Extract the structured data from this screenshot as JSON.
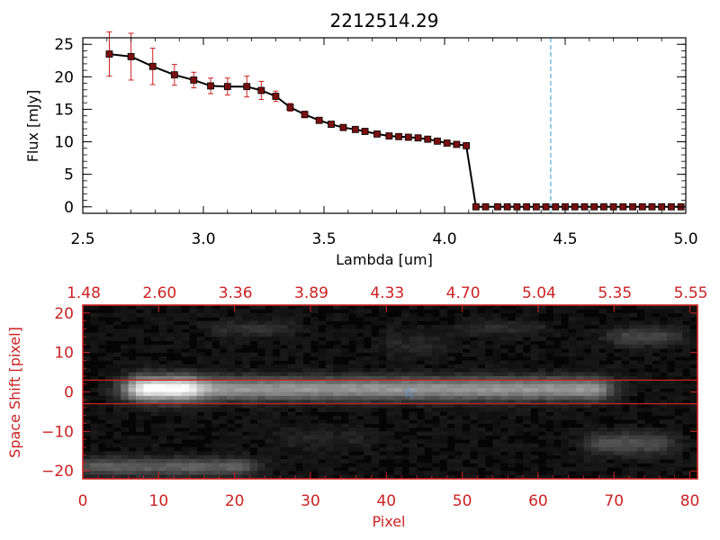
{
  "colors": {
    "axis_top": "#000000",
    "axis_bottom": "#cc2222",
    "errorbar": "#cc2222",
    "marker": "#7a0f0f",
    "vline": "#3399cc",
    "ridge_line": "#cc2222",
    "star": "#4aa3ff",
    "image_bg": "#050505"
  },
  "chart_data": [
    {
      "type": "line",
      "title": "2212514.29",
      "xlabel": "Lambda [um]",
      "ylabel": "Flux [mJy]",
      "xlim": [
        2.5,
        5.0
      ],
      "ylim": [
        -1,
        26
      ],
      "x_ticks": [
        2.5,
        3.0,
        3.5,
        4.0,
        4.5,
        5.0
      ],
      "x_tick_labels": [
        "2.5",
        "3.0",
        "3.5",
        "4.0",
        "4.5",
        "5.0"
      ],
      "y_ticks": [
        0,
        5,
        10,
        15,
        20,
        25
      ],
      "y_tick_labels": [
        "0",
        "5",
        "10",
        "15",
        "20",
        "25"
      ],
      "vline_x": 4.44,
      "series": [
        {
          "x": [
            2.61,
            2.7,
            2.79,
            2.88,
            2.96,
            3.03,
            3.1,
            3.18,
            3.24,
            3.3,
            3.36,
            3.42,
            3.48,
            3.53,
            3.58,
            3.63,
            3.67,
            3.72,
            3.77,
            3.81,
            3.85,
            3.89,
            3.93,
            3.97,
            4.01,
            4.05,
            4.09,
            4.13,
            4.17,
            4.22,
            4.26,
            4.3,
            4.34,
            4.38,
            4.42,
            4.46,
            4.5,
            4.54,
            4.58,
            4.62,
            4.66,
            4.7,
            4.74,
            4.78,
            4.82,
            4.86,
            4.9,
            4.94,
            4.98
          ],
          "y": [
            23.5,
            23.1,
            21.6,
            20.3,
            19.5,
            18.6,
            18.5,
            18.5,
            17.9,
            17.0,
            15.3,
            14.2,
            13.3,
            12.7,
            12.2,
            11.9,
            11.6,
            11.2,
            10.9,
            10.8,
            10.7,
            10.6,
            10.4,
            10.1,
            9.8,
            9.6,
            9.4,
            0.0,
            0.0,
            0.0,
            0.0,
            0.0,
            0.0,
            0.0,
            0.0,
            0.0,
            0.0,
            0.0,
            0.0,
            0.0,
            0.0,
            0.0,
            0.0,
            0.0,
            0.0,
            0.0,
            0.0,
            0.0,
            0.0
          ],
          "err": [
            3.4,
            3.6,
            2.8,
            1.6,
            1.2,
            1.2,
            1.3,
            1.6,
            1.4,
            0.8,
            0.6,
            0.5,
            0.4,
            0.3,
            0.3,
            0.3,
            0.3,
            0.3,
            0.3,
            0.3,
            0.3,
            0.3,
            0.3,
            0.3,
            0.3,
            0.3,
            0.3,
            0.3,
            0.3,
            0.3,
            0.3,
            0.3,
            0.3,
            0.3,
            0.3,
            0.3,
            0.3,
            0.3,
            0.3,
            0.3,
            0.3,
            0.3,
            0.3,
            0.3,
            0.3,
            0.3,
            0.3,
            0.3,
            0.3
          ]
        }
      ]
    },
    {
      "type": "heatmap",
      "xlabel": "Pixel",
      "ylabel": "Space Shift [pixel]",
      "xlim": [
        0,
        81
      ],
      "ylim": [
        -22,
        22
      ],
      "x_ticks": [
        0,
        10,
        20,
        30,
        40,
        50,
        60,
        70,
        80
      ],
      "x_tick_labels": [
        "0",
        "10",
        "20",
        "30",
        "40",
        "50",
        "60",
        "70",
        "80"
      ],
      "y_ticks": [
        -20,
        -10,
        0,
        10,
        20
      ],
      "y_tick_labels": [
        "−20",
        "−10",
        "0",
        "10",
        "20"
      ],
      "top_ticks": [
        0,
        10,
        20,
        30,
        40,
        50,
        60,
        70,
        80
      ],
      "top_tick_labels": [
        "1.48",
        "2.60",
        "3.36",
        "3.89",
        "4.33",
        "4.70",
        "5.04",
        "5.35",
        "5.55"
      ],
      "hlines": [
        3,
        -3
      ],
      "star": {
        "x": 43,
        "y": 0
      },
      "sources": [
        {
          "x0": 8,
          "x1": 67,
          "y": 0.8,
          "amp": 0.55,
          "sy": 2.0
        },
        {
          "x0": 9,
          "x1": 13,
          "y": 0.8,
          "amp": 0.45,
          "sy": 2.3
        },
        {
          "x0": 2,
          "x1": 20,
          "y": -19,
          "amp": 0.32,
          "sy": 1.6
        },
        {
          "x0": 72,
          "x1": 76,
          "y": 14,
          "amp": 0.22,
          "sy": 1.6
        },
        {
          "x0": 69,
          "x1": 75,
          "y": -13,
          "amp": 0.25,
          "sy": 2.0
        },
        {
          "x0": 20,
          "x1": 25,
          "y": 16,
          "amp": 0.13,
          "sy": 1.4
        },
        {
          "x0": 52,
          "x1": 58,
          "y": 16,
          "amp": 0.12,
          "sy": 1.2
        },
        {
          "x0": 42,
          "x1": 45,
          "y": 12,
          "amp": 0.08,
          "sy": 2.5
        },
        {
          "x0": 28,
          "x1": 35,
          "y": -12,
          "amp": 0.07,
          "sy": 2.0
        }
      ]
    }
  ]
}
